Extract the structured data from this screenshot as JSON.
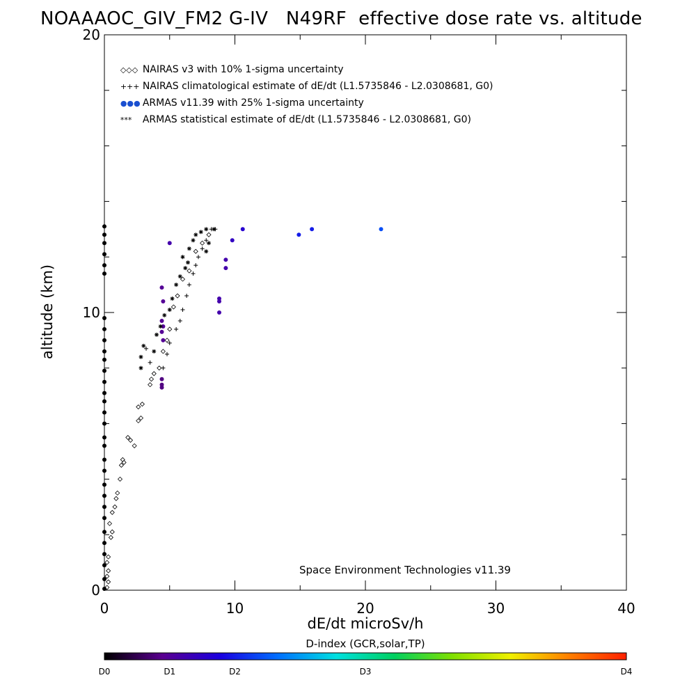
{
  "title": "NOAAAOC_GIV_FM2 G-IV   N49RF  effective dose rate vs. altitude",
  "credit": "Space Environment Technologies v11.39",
  "colorbar": {
    "title": "D-index (GCR,solar,TP)",
    "ticks": [
      "D0",
      "D1",
      "D2",
      "D3",
      "D4"
    ],
    "tick_values": [
      0,
      0.125,
      0.25,
      0.5,
      1.0
    ],
    "colors": [
      "#000000",
      "#5a0090",
      "#1a00e0",
      "#0070ff",
      "#00e0e0",
      "#00d060",
      "#80e000",
      "#f0f000",
      "#ff8000",
      "#ff2000"
    ]
  },
  "chart_data": {
    "type": "scatter",
    "title": "NOAAAOC_GIV_FM2 G-IV   N49RF  effective dose rate vs. altitude",
    "xlabel": "dE/dt microSv/h",
    "ylabel": "altitude (km)",
    "xlim": [
      0,
      40
    ],
    "ylim": [
      0,
      20
    ],
    "xticks": [
      0,
      10,
      20,
      30,
      40
    ],
    "yticks": [
      0,
      10,
      20
    ],
    "legend": [
      {
        "symbol": "◇◇◇",
        "label": "NAIRAS v3 with 10% 1-sigma uncertainty",
        "color": "#000000"
      },
      {
        "symbol": "+++",
        "label": "NAIRAS climatological estimate of dE/dt (L1.5735846 - L2.0308681, G0)",
        "color": "#000000"
      },
      {
        "symbol": "●●●",
        "label": "ARMAS v11.39 with 25% 1-sigma uncertainty",
        "color": "#1a4fd0"
      },
      {
        "symbol": "***",
        "label": "ARMAS statistical estimate of dE/dt (L1.5735846 - L2.0308681, G0)",
        "color": "#000000"
      }
    ],
    "series": [
      {
        "name": "NAIRAS v3 with 10% 1-sigma uncertainty",
        "marker": "diamond",
        "points": [
          [
            0.2,
            0.1
          ],
          [
            0.3,
            0.3
          ],
          [
            0.2,
            0.5
          ],
          [
            0.3,
            0.7
          ],
          [
            0.2,
            1.0
          ],
          [
            0.3,
            1.2
          ],
          [
            0.5,
            1.9
          ],
          [
            0.6,
            2.1
          ],
          [
            0.4,
            2.4
          ],
          [
            0.6,
            2.8
          ],
          [
            0.8,
            3.0
          ],
          [
            0.9,
            3.3
          ],
          [
            1.0,
            3.5
          ],
          [
            1.2,
            4.0
          ],
          [
            1.3,
            4.5
          ],
          [
            1.5,
            4.6
          ],
          [
            1.4,
            4.7
          ],
          [
            1.8,
            5.5
          ],
          [
            2.0,
            5.4
          ],
          [
            2.3,
            5.2
          ],
          [
            2.6,
            6.1
          ],
          [
            2.8,
            6.2
          ],
          [
            2.6,
            6.6
          ],
          [
            2.9,
            6.7
          ],
          [
            3.5,
            7.4
          ],
          [
            3.6,
            7.6
          ],
          [
            3.8,
            7.8
          ],
          [
            4.2,
            8.0
          ],
          [
            4.5,
            8.6
          ],
          [
            4.8,
            9.0
          ],
          [
            5.0,
            9.4
          ],
          [
            5.3,
            10.2
          ],
          [
            5.6,
            10.6
          ],
          [
            6.0,
            11.2
          ],
          [
            6.5,
            11.5
          ],
          [
            7.0,
            12.2
          ],
          [
            7.5,
            12.5
          ],
          [
            8.0,
            12.8
          ]
        ]
      },
      {
        "name": "NAIRAS climatological estimate of dE/dt (L1.5735846 - L2.0308681, G0)",
        "marker": "plus",
        "points": [
          [
            3.2,
            8.7
          ],
          [
            3.5,
            8.2
          ],
          [
            4.5,
            8.0
          ],
          [
            4.8,
            8.5
          ],
          [
            5.0,
            8.9
          ],
          [
            5.5,
            9.4
          ],
          [
            5.8,
            9.7
          ],
          [
            6.0,
            10.1
          ],
          [
            6.3,
            10.6
          ],
          [
            6.5,
            11.0
          ],
          [
            6.8,
            11.4
          ],
          [
            7.0,
            11.7
          ],
          [
            7.2,
            12.0
          ],
          [
            7.5,
            12.3
          ],
          [
            7.8,
            12.6
          ],
          [
            8.2,
            13.0
          ],
          [
            8.5,
            13.0
          ]
        ]
      },
      {
        "name": "ARMAS v11.39 with 25% 1-sigma uncertainty",
        "marker": "dot",
        "points": [
          [
            4.4,
            7.3,
            0.1
          ],
          [
            4.4,
            7.4,
            0.1
          ],
          [
            4.4,
            7.6,
            0.1
          ],
          [
            4.5,
            9.0,
            0.12
          ],
          [
            4.5,
            9.5,
            0.12
          ],
          [
            4.4,
            9.7,
            0.12
          ],
          [
            4.5,
            10.4,
            0.12
          ],
          [
            4.4,
            10.9,
            0.12
          ],
          [
            4.4,
            9.3,
            0.12
          ],
          [
            5.0,
            12.5,
            0.15
          ],
          [
            8.8,
            10.0,
            0.15
          ],
          [
            8.8,
            10.4,
            0.15
          ],
          [
            8.8,
            10.5,
            0.15
          ],
          [
            9.3,
            11.6,
            0.15
          ],
          [
            9.3,
            11.9,
            0.15
          ],
          [
            9.8,
            12.6,
            0.18
          ],
          [
            10.6,
            13.0,
            0.2
          ],
          [
            14.9,
            12.8,
            0.25
          ],
          [
            15.9,
            13.0,
            0.25
          ],
          [
            21.2,
            13.0,
            0.3
          ]
        ]
      },
      {
        "name": "ARMAS statistical estimate of dE/dt (L1.5735846 - L2.0308681, G0)",
        "marker": "star",
        "points": [
          [
            2.8,
            8.4
          ],
          [
            3.0,
            8.8
          ],
          [
            2.8,
            8.0
          ],
          [
            3.8,
            8.6
          ],
          [
            4.0,
            9.2
          ],
          [
            4.3,
            9.5
          ],
          [
            4.6,
            9.9
          ],
          [
            5.0,
            10.1
          ],
          [
            5.2,
            10.5
          ],
          [
            5.5,
            11.0
          ],
          [
            5.8,
            11.3
          ],
          [
            6.2,
            11.6
          ],
          [
            6.0,
            12.0
          ],
          [
            6.5,
            12.3
          ],
          [
            6.8,
            12.6
          ],
          [
            7.0,
            12.8
          ],
          [
            7.4,
            12.9
          ],
          [
            7.8,
            13.0
          ],
          [
            8.4,
            13.0
          ],
          [
            8.0,
            12.5
          ],
          [
            7.8,
            12.2
          ],
          [
            6.4,
            11.8
          ]
        ]
      },
      {
        "name": "ARMAS along x=0",
        "marker": "dot",
        "points": [
          [
            0,
            0.05,
            0
          ],
          [
            0,
            0.4,
            0
          ],
          [
            0,
            0.9,
            0
          ],
          [
            0,
            1.3,
            0
          ],
          [
            0,
            1.7,
            0
          ],
          [
            0,
            2.1,
            0
          ],
          [
            0,
            2.6,
            0
          ],
          [
            0,
            3.0,
            0
          ],
          [
            0,
            3.4,
            0
          ],
          [
            0,
            3.8,
            0
          ],
          [
            0,
            4.3,
            0
          ],
          [
            0,
            4.7,
            0
          ],
          [
            0,
            5.2,
            0
          ],
          [
            0,
            5.5,
            0
          ],
          [
            0,
            6.0,
            0
          ],
          [
            0,
            6.4,
            0
          ],
          [
            0,
            6.8,
            0
          ],
          [
            0,
            7.1,
            0
          ],
          [
            0,
            7.5,
            0
          ],
          [
            0,
            7.9,
            0
          ],
          [
            0,
            8.3,
            0
          ],
          [
            0,
            8.6,
            0
          ],
          [
            0,
            9.0,
            0
          ],
          [
            0,
            9.4,
            0
          ],
          [
            0,
            9.8,
            0
          ],
          [
            0,
            11.4,
            0
          ],
          [
            0,
            11.7,
            0
          ],
          [
            0,
            12.1,
            0
          ],
          [
            0,
            12.5,
            0
          ],
          [
            0,
            12.8,
            0
          ],
          [
            0,
            13.1,
            0
          ]
        ]
      }
    ]
  }
}
